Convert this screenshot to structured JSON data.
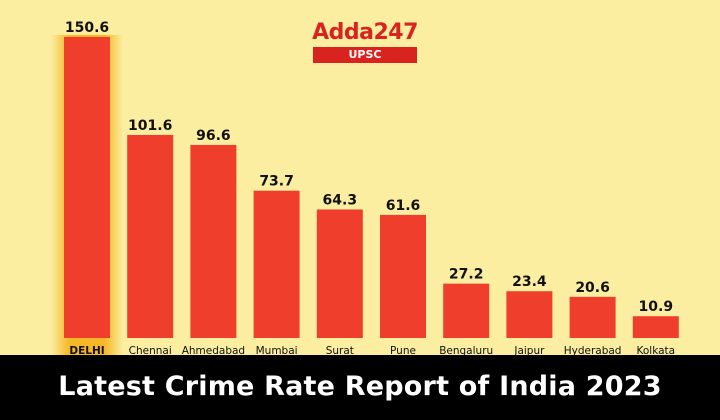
{
  "brand": {
    "name": "Adda247",
    "tag": "UPSC",
    "color": "#d8231f"
  },
  "footer": {
    "title": "Latest Crime Rate Report of India 2023"
  },
  "colors": {
    "background": "#fbeea0",
    "bar": "#ef3f2c",
    "highlight_glow": "#f5b21a",
    "footer_bg": "#000000"
  },
  "chart_data": {
    "type": "bar",
    "categories": [
      "DELHI",
      "Chennai",
      "Ahmedabad",
      "Mumbai",
      "Surat",
      "Pune",
      "Bengaluru",
      "Jaipur",
      "Hyderabad",
      "Kolkata"
    ],
    "values": [
      150.6,
      101.6,
      96.6,
      73.7,
      64.3,
      61.6,
      27.2,
      23.4,
      20.6,
      10.9
    ],
    "value_labels": [
      "150.6",
      "101.6",
      "96.6",
      "73.7",
      "64.3",
      "61.6",
      "27.2",
      "23.4",
      "20.6",
      "10.9"
    ],
    "highlight": "DELHI",
    "title": "",
    "xlabel": "",
    "ylabel": "",
    "ylim": [
      0,
      150.6
    ],
    "grid": false,
    "legend": "none"
  }
}
